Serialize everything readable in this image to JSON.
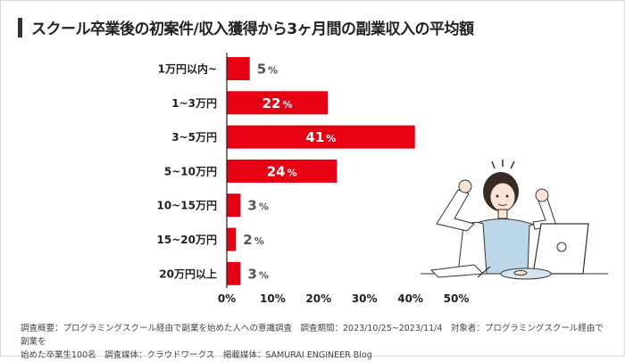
{
  "title": "スクール卒業後の初案件/収入獲得から3ヶ月間の副業収入の平均額",
  "colors": {
    "bar": "#e60012",
    "inside_label": "#ffffff",
    "outside_label": "#555555",
    "axis": "#222222"
  },
  "chart_data": {
    "type": "bar",
    "orientation": "horizontal",
    "categories": [
      "1万円以内~",
      "1~3万円",
      "3~5万円",
      "5~10万円",
      "10~15万円",
      "15~20万円",
      "20万円以上"
    ],
    "values": [
      5,
      22,
      41,
      24,
      3,
      2,
      3
    ],
    "value_labels": [
      "5",
      "22",
      "41",
      "24",
      "3",
      "2",
      "3"
    ],
    "value_suffix": "%",
    "xlim": [
      0,
      50
    ],
    "xticks": [
      0,
      10,
      20,
      30,
      40,
      50
    ],
    "xtick_labels": [
      "0%",
      "10%",
      "20%",
      "30%",
      "40%",
      "50%"
    ],
    "grid": false,
    "legend": "none"
  },
  "footer": {
    "line1": "調査概要：プログラミングスクール経由で副業を始めた人への意識調査　調査期間：2023/10/25~2023/11/4　対象者：プログラミングスクール経由で副業を",
    "line2": "始めた卒業生100名　調査媒体：クラウドワークス　掲載媒体：SAMURAI ENGINEER Blog"
  }
}
